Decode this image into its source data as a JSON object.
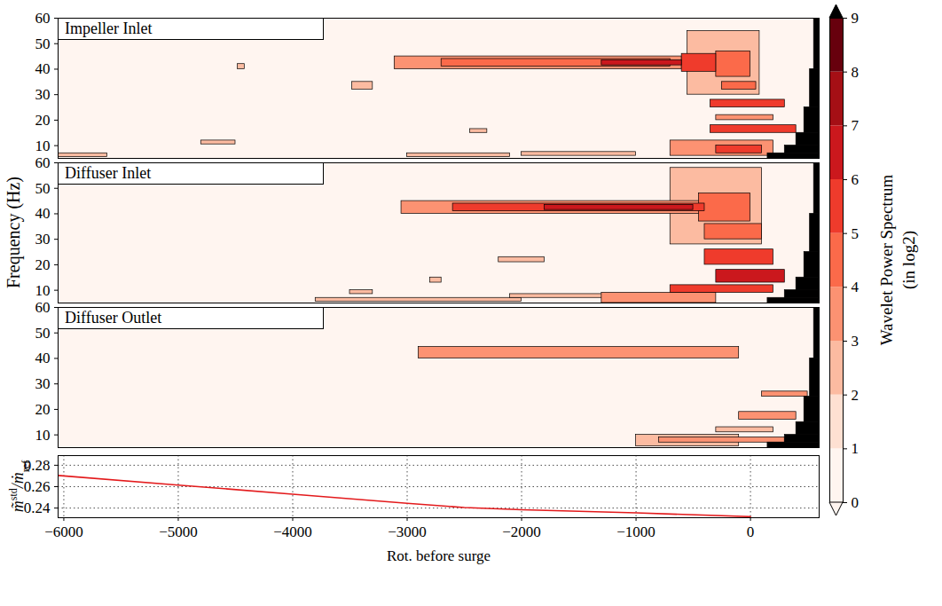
{
  "chart_data": [
    {
      "type": "heatmap",
      "xlim": [
        -6050,
        600
      ],
      "ylim": [
        5,
        60
      ],
      "yticks": [
        10,
        20,
        30,
        40,
        50,
        60
      ],
      "ylabel": "Frequency (Hz)",
      "tick_labels": "y",
      "colorbar": {
        "range": [
          0,
          9
        ],
        "ticks": [
          0,
          1,
          2,
          3,
          4,
          5,
          6,
          7,
          8,
          9
        ],
        "colors": [
          "#fff5f0",
          "#fee0d2",
          "#fcbba1",
          "#fc9272",
          "#fb6a4a",
          "#ef3b2c",
          "#cb181d",
          "#a50f15",
          "#67000d",
          "#000000"
        ],
        "label": [
          "Wavelet Power Spectrum",
          "(in log2)"
        ]
      },
      "panels": [
        {
          "title": "Impeller Inlet",
          "cells": [
            {
              "x1": -6050,
              "x2": -5620,
              "y1": 5.5,
              "y2": 7,
              "value": 2
            },
            {
              "x1": -4480,
              "x2": -4420,
              "y1": 40,
              "y2": 42,
              "value": 2
            },
            {
              "x1": -3480,
              "x2": -3300,
              "y1": 32,
              "y2": 35,
              "value": 2
            },
            {
              "x1": -4800,
              "x2": -4500,
              "y1": 10.5,
              "y2": 12,
              "value": 2
            },
            {
              "x1": -2000,
              "x2": -1000,
              "y1": 6,
              "y2": 7.5,
              "value": 2
            },
            {
              "x1": -3000,
              "x2": -2100,
              "y1": 5.5,
              "y2": 7,
              "value": 2
            },
            {
              "x1": -2450,
              "x2": -2300,
              "y1": 15,
              "y2": 16.5,
              "value": 2
            },
            {
              "x1": -550,
              "x2": 80,
              "y1": 30,
              "y2": 55,
              "value": 2.5
            },
            {
              "x1": -3110,
              "x2": -600,
              "y1": 40,
              "y2": 45,
              "value": 3
            },
            {
              "x1": -300,
              "x2": 200,
              "y1": 20,
              "y2": 22,
              "value": 3
            },
            {
              "x1": -700,
              "x2": 200,
              "y1": 6,
              "y2": 12,
              "value": 3
            },
            {
              "x1": -300,
              "x2": 0,
              "y1": 37,
              "y2": 47,
              "value": 4
            },
            {
              "x1": -250,
              "x2": 50,
              "y1": 32,
              "y2": 35,
              "value": 4
            },
            {
              "x1": -2700,
              "x2": -700,
              "y1": 41,
              "y2": 44,
              "value": 4.5
            },
            {
              "x1": -600,
              "x2": -300,
              "y1": 39,
              "y2": 46,
              "value": 5
            },
            {
              "x1": -350,
              "x2": 300,
              "y1": 25,
              "y2": 28,
              "value": 5
            },
            {
              "x1": -350,
              "x2": 400,
              "y1": 15,
              "y2": 18,
              "value": 5
            },
            {
              "x1": -300,
              "x2": 100,
              "y1": 7,
              "y2": 10,
              "value": 5
            },
            {
              "x1": -1300,
              "x2": -600,
              "y1": 41.5,
              "y2": 43.5,
              "value": 6
            },
            {
              "x1": 150,
              "x2": 600,
              "y1": 5,
              "y2": 7,
              "value": 10
            },
            {
              "x1": 300,
              "x2": 600,
              "y1": 7,
              "y2": 10,
              "value": 10
            },
            {
              "x1": 400,
              "x2": 600,
              "y1": 10,
              "y2": 15,
              "value": 10
            },
            {
              "x1": 470,
              "x2": 600,
              "y1": 15,
              "y2": 25,
              "value": 10
            },
            {
              "x1": 520,
              "x2": 600,
              "y1": 25,
              "y2": 40,
              "value": 10
            },
            {
              "x1": 555,
              "x2": 600,
              "y1": 40,
              "y2": 60,
              "value": 10
            }
          ]
        },
        {
          "title": "Diffuser Inlet",
          "cells": [
            {
              "x1": -3800,
              "x2": -2000,
              "y1": 5.5,
              "y2": 7,
              "value": 2
            },
            {
              "x1": -2200,
              "x2": -1800,
              "y1": 21,
              "y2": 23,
              "value": 2
            },
            {
              "x1": -2800,
              "x2": -2700,
              "y1": 13,
              "y2": 15,
              "value": 2
            },
            {
              "x1": -3500,
              "x2": -3300,
              "y1": 8.5,
              "y2": 10,
              "value": 2
            },
            {
              "x1": -700,
              "x2": 100,
              "y1": 28,
              "y2": 58,
              "value": 2.5
            },
            {
              "x1": -2100,
              "x2": -1000,
              "y1": 7,
              "y2": 8.5,
              "value": 2.5
            },
            {
              "x1": -3050,
              "x2": -300,
              "y1": 40,
              "y2": 45,
              "value": 3
            },
            {
              "x1": -1300,
              "x2": -300,
              "y1": 5,
              "y2": 9,
              "value": 3
            },
            {
              "x1": -400,
              "x2": 100,
              "y1": 30,
              "y2": 36,
              "value": 4
            },
            {
              "x1": -450,
              "x2": 0,
              "y1": 37,
              "y2": 48,
              "value": 4.5
            },
            {
              "x1": -2600,
              "x2": -400,
              "y1": 41,
              "y2": 44,
              "value": 5
            },
            {
              "x1": -400,
              "x2": 200,
              "y1": 20,
              "y2": 26,
              "value": 5
            },
            {
              "x1": -700,
              "x2": 200,
              "y1": 9,
              "y2": 12,
              "value": 5
            },
            {
              "x1": -300,
              "x2": 300,
              "y1": 13,
              "y2": 18,
              "value": 6
            },
            {
              "x1": -1800,
              "x2": -500,
              "y1": 41.5,
              "y2": 43.5,
              "value": 6.5
            },
            {
              "x1": 150,
              "x2": 600,
              "y1": 5,
              "y2": 7,
              "value": 10
            },
            {
              "x1": 300,
              "x2": 600,
              "y1": 7,
              "y2": 10,
              "value": 10
            },
            {
              "x1": 400,
              "x2": 600,
              "y1": 10,
              "y2": 15,
              "value": 10
            },
            {
              "x1": 470,
              "x2": 600,
              "y1": 15,
              "y2": 25,
              "value": 10
            },
            {
              "x1": 520,
              "x2": 600,
              "y1": 25,
              "y2": 40,
              "value": 10
            },
            {
              "x1": 555,
              "x2": 600,
              "y1": 40,
              "y2": 60,
              "value": 10
            }
          ]
        },
        {
          "title": "Diffuser Outlet",
          "cells": [
            {
              "x1": -1000,
              "x2": -100,
              "y1": 5.5,
              "y2": 10,
              "value": 2.5
            },
            {
              "x1": -300,
              "x2": 200,
              "y1": 11,
              "y2": 13,
              "value": 2.5
            },
            {
              "x1": -2900,
              "x2": -100,
              "y1": 40,
              "y2": 44.5,
              "value": 3
            },
            {
              "x1": 100,
              "x2": 500,
              "y1": 25,
              "y2": 27,
              "value": 3
            },
            {
              "x1": -100,
              "x2": 400,
              "y1": 16,
              "y2": 19,
              "value": 3
            },
            {
              "x1": -800,
              "x2": 300,
              "y1": 7,
              "y2": 9,
              "value": 3
            },
            {
              "x1": 150,
              "x2": 600,
              "y1": 5,
              "y2": 7,
              "value": 10
            },
            {
              "x1": 300,
              "x2": 600,
              "y1": 7,
              "y2": 10,
              "value": 10
            },
            {
              "x1": 400,
              "x2": 600,
              "y1": 10,
              "y2": 15,
              "value": 10
            },
            {
              "x1": 470,
              "x2": 600,
              "y1": 15,
              "y2": 25,
              "value": 10
            },
            {
              "x1": 520,
              "x2": 600,
              "y1": 25,
              "y2": 40,
              "value": 10
            },
            {
              "x1": 555,
              "x2": 600,
              "y1": 40,
              "y2": 60,
              "value": 10
            }
          ]
        }
      ]
    },
    {
      "type": "line",
      "xlabel": "Rot. before surge",
      "ylabel": [
        "m̃",
        "std",
        "/ṁ",
        "ref"
      ],
      "xlim": [
        -6050,
        600
      ],
      "xticks": [
        {
          "value": -6000,
          "label": "−6000"
        },
        {
          "value": -5000,
          "label": "−5000"
        },
        {
          "value": -4000,
          "label": "−4000"
        },
        {
          "value": -3000,
          "label": "−3000"
        },
        {
          "value": -2000,
          "label": "−2000"
        },
        {
          "value": -1000,
          "label": "−1000"
        },
        0
      ],
      "ylim": [
        0.231,
        0.289
      ],
      "yticks": [
        0.24,
        0.26,
        0.28
      ],
      "grid": true,
      "series": [
        {
          "color": "#e31a1c",
          "x": [
            -6050,
            -5000,
            -4000,
            -3000,
            -2500,
            -2000,
            -1000,
            0
          ],
          "values": [
            0.2705,
            0.2615,
            0.253,
            0.2445,
            0.2405,
            0.2385,
            0.2355,
            0.232
          ]
        }
      ]
    }
  ]
}
